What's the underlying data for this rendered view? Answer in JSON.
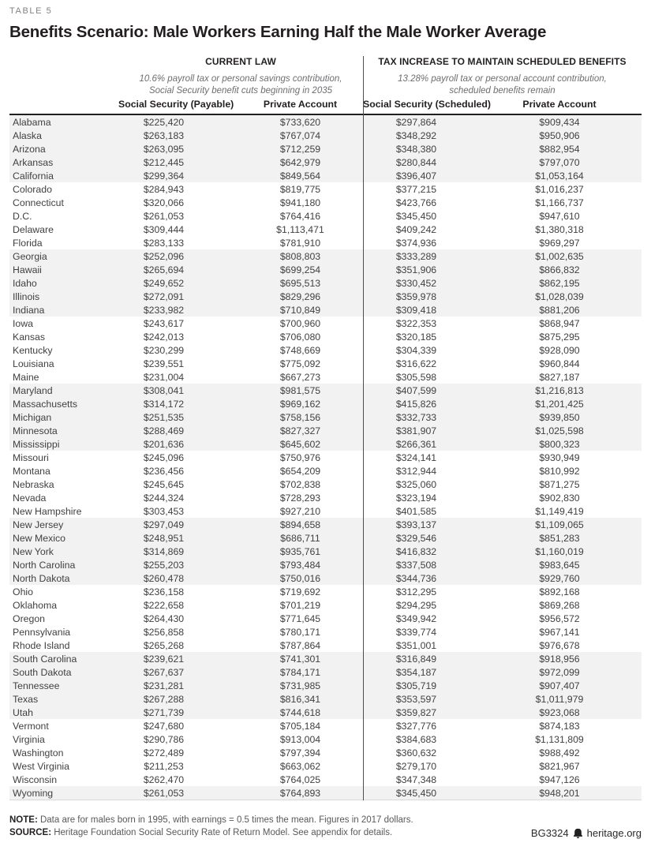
{
  "table_label": "TABLE 5",
  "title": "Benefits Scenario: Male Workers Earning Half the Male Worker Average",
  "groups": {
    "current_law": {
      "title": "CURRENT LAW",
      "subtitle_line1": "10.6% payroll tax or personal savings contribution,",
      "subtitle_line2": "Social Security benefit cuts beginning in 2035",
      "col1": "Social Security (Payable)",
      "col2": "Private Account"
    },
    "tax_increase": {
      "title": "TAX INCREASE TO MAINTAIN SCHEDULED BENEFITS",
      "subtitle_line1": "13.28% payroll tax or personal account contribution,",
      "subtitle_line2": "scheduled benefits remain",
      "col1": "Social Security (Scheduled)",
      "col2": "Private Account"
    }
  },
  "columns": [
    "State",
    "Social Security (Payable)",
    "Private Account",
    "Social Security (Scheduled)",
    "Private Account"
  ],
  "rows": [
    [
      "Alabama",
      "$225,420",
      "$733,620",
      "$297,864",
      "$909,434"
    ],
    [
      "Alaska",
      "$263,183",
      "$767,074",
      "$348,292",
      "$950,906"
    ],
    [
      "Arizona",
      "$263,095",
      "$712,259",
      "$348,380",
      "$882,954"
    ],
    [
      "Arkansas",
      "$212,445",
      "$642,979",
      "$280,844",
      "$797,070"
    ],
    [
      "California",
      "$299,364",
      "$849,564",
      "$396,407",
      "$1,053,164"
    ],
    [
      "Colorado",
      "$284,943",
      "$819,775",
      "$377,215",
      "$1,016,237"
    ],
    [
      "Connecticut",
      "$320,066",
      "$941,180",
      "$423,766",
      "$1,166,737"
    ],
    [
      "D.C.",
      "$261,053",
      "$764,416",
      "$345,450",
      "$947,610"
    ],
    [
      "Delaware",
      "$309,444",
      "$1,113,471",
      "$409,242",
      "$1,380,318"
    ],
    [
      "Florida",
      "$283,133",
      "$781,910",
      "$374,936",
      "$969,297"
    ],
    [
      "Georgia",
      "$252,096",
      "$808,803",
      "$333,289",
      "$1,002,635"
    ],
    [
      "Hawaii",
      "$265,694",
      "$699,254",
      "$351,906",
      "$866,832"
    ],
    [
      "Idaho",
      "$249,652",
      "$695,513",
      "$330,452",
      "$862,195"
    ],
    [
      "Illinois",
      "$272,091",
      "$829,296",
      "$359,978",
      "$1,028,039"
    ],
    [
      "Indiana",
      "$233,982",
      "$710,849",
      "$309,418",
      "$881,206"
    ],
    [
      "Iowa",
      "$243,617",
      "$700,960",
      "$322,353",
      "$868,947"
    ],
    [
      "Kansas",
      "$242,013",
      "$706,080",
      "$320,185",
      "$875,295"
    ],
    [
      "Kentucky",
      "$230,299",
      "$748,669",
      "$304,339",
      "$928,090"
    ],
    [
      "Louisiana",
      "$239,551",
      "$775,092",
      "$316,622",
      "$960,844"
    ],
    [
      "Maine",
      "$231,004",
      "$667,273",
      "$305,598",
      "$827,187"
    ],
    [
      "Maryland",
      "$308,041",
      "$981,575",
      "$407,599",
      "$1,216,813"
    ],
    [
      "Massachusetts",
      "$314,172",
      "$969,162",
      "$415,826",
      "$1,201,425"
    ],
    [
      "Michigan",
      "$251,535",
      "$758,156",
      "$332,733",
      "$939,850"
    ],
    [
      "Minnesota",
      "$288,469",
      "$827,327",
      "$381,907",
      "$1,025,598"
    ],
    [
      "Mississippi",
      "$201,636",
      "$645,602",
      "$266,361",
      "$800,323"
    ],
    [
      "Missouri",
      "$245,096",
      "$750,976",
      "$324,141",
      "$930,949"
    ],
    [
      "Montana",
      "$236,456",
      "$654,209",
      "$312,944",
      "$810,992"
    ],
    [
      "Nebraska",
      "$245,645",
      "$702,838",
      "$325,060",
      "$871,275"
    ],
    [
      "Nevada",
      "$244,324",
      "$728,293",
      "$323,194",
      "$902,830"
    ],
    [
      "New Hampshire",
      "$303,453",
      "$927,210",
      "$401,585",
      "$1,149,419"
    ],
    [
      "New Jersey",
      "$297,049",
      "$894,658",
      "$393,137",
      "$1,109,065"
    ],
    [
      "New Mexico",
      "$248,951",
      "$686,711",
      "$329,546",
      "$851,283"
    ],
    [
      "New York",
      "$314,869",
      "$935,761",
      "$416,832",
      "$1,160,019"
    ],
    [
      "North Carolina",
      "$255,203",
      "$793,484",
      "$337,508",
      "$983,645"
    ],
    [
      "North Dakota",
      "$260,478",
      "$750,016",
      "$344,736",
      "$929,760"
    ],
    [
      "Ohio",
      "$236,158",
      "$719,692",
      "$312,295",
      "$892,168"
    ],
    [
      "Oklahoma",
      "$222,658",
      "$701,219",
      "$294,295",
      "$869,268"
    ],
    [
      "Oregon",
      "$264,430",
      "$771,645",
      "$349,942",
      "$956,572"
    ],
    [
      "Pennsylvania",
      "$256,858",
      "$780,171",
      "$339,774",
      "$967,141"
    ],
    [
      "Rhode Island",
      "$265,268",
      "$787,864",
      "$351,001",
      "$976,678"
    ],
    [
      "South Carolina",
      "$239,621",
      "$741,301",
      "$316,849",
      "$918,956"
    ],
    [
      "South Dakota",
      "$267,637",
      "$784,171",
      "$354,187",
      "$972,099"
    ],
    [
      "Tennessee",
      "$231,281",
      "$731,985",
      "$305,719",
      "$907,407"
    ],
    [
      "Texas",
      "$267,288",
      "$816,341",
      "$353,597",
      "$1,011,979"
    ],
    [
      "Utah",
      "$271,739",
      "$744,618",
      "$359,827",
      "$923,068"
    ],
    [
      "Vermont",
      "$247,680",
      "$705,184",
      "$327,776",
      "$874,183"
    ],
    [
      "Virginia",
      "$290,786",
      "$913,004",
      "$384,683",
      "$1,131,809"
    ],
    [
      "Washington",
      "$272,489",
      "$797,394",
      "$360,632",
      "$988,492"
    ],
    [
      "West Virginia",
      "$211,253",
      "$663,062",
      "$279,170",
      "$821,967"
    ],
    [
      "Wisconsin",
      "$262,470",
      "$764,025",
      "$347,348",
      "$947,126"
    ],
    [
      "Wyoming",
      "$261,053",
      "$764,893",
      "$345,450",
      "$948,201"
    ]
  ],
  "footer": {
    "note_label": "NOTE:",
    "note_text": " Data are for males born in 1995, with earnings = 0.5 times the mean. Figures in 2017 dollars.",
    "source_label": "SOURCE:",
    "source_text": " Heritage Foundation Social Security Rate of Return Model. See appendix for details.",
    "doc_id": "BG3324",
    "site": "heritage.org"
  },
  "icons": {
    "logo": "liberty-bell-icon"
  },
  "colors": {
    "band": "#f2f2f3",
    "rule_dark": "#231f20",
    "body_text": "#414042",
    "muted_text": "#6d6e71",
    "label_gray": "#808285"
  }
}
